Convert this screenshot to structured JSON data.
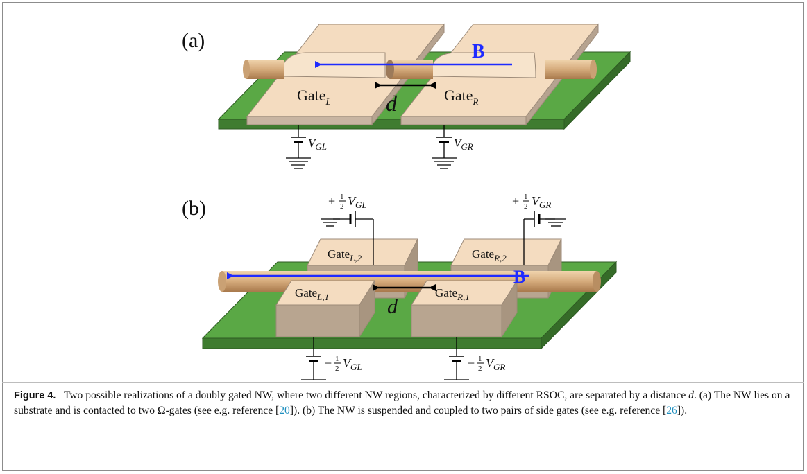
{
  "figure": {
    "panel_a_label": "(a)",
    "panel_b_label": "(b)",
    "field_label": "B",
    "distance_label": "d",
    "gate_text": "Gate",
    "gate_L_sub": "L",
    "gate_R_sub": "R",
    "gate_L1_sub": "L,1",
    "gate_L2_sub": "L,2",
    "gate_R1_sub": "R,1",
    "gate_R2_sub": "R,2",
    "volt_V": "V",
    "volt_GL_sub": "GL",
    "volt_GR_sub": "GR",
    "plus_sign": "+",
    "minus_sign": "−",
    "half_num": "1",
    "half_den": "2"
  },
  "caption": {
    "label": "Figure 4.",
    "part1": "Two possible realizations of a doubly gated NW, where two different NW regions, characterized by different RSOC, are separated by a distance ",
    "d": "d",
    "part2": ". (a) The NW lies on a substrate and is contacted to two Ω-gates (see e.g. reference [",
    "ref1": "20",
    "part3": "]). (b) The NW is suspended and coupled to two pairs of side gates (see e.g. reference [",
    "ref2": "26",
    "part4": "])."
  },
  "colors": {
    "substrate": "#5aa845",
    "substrate_side": "#3f7c30",
    "gate_top": "#f4dcc0",
    "gate_side": "#c8b5a2",
    "wire": "#d9b48a",
    "field_arrow": "#1f2bff"
  }
}
